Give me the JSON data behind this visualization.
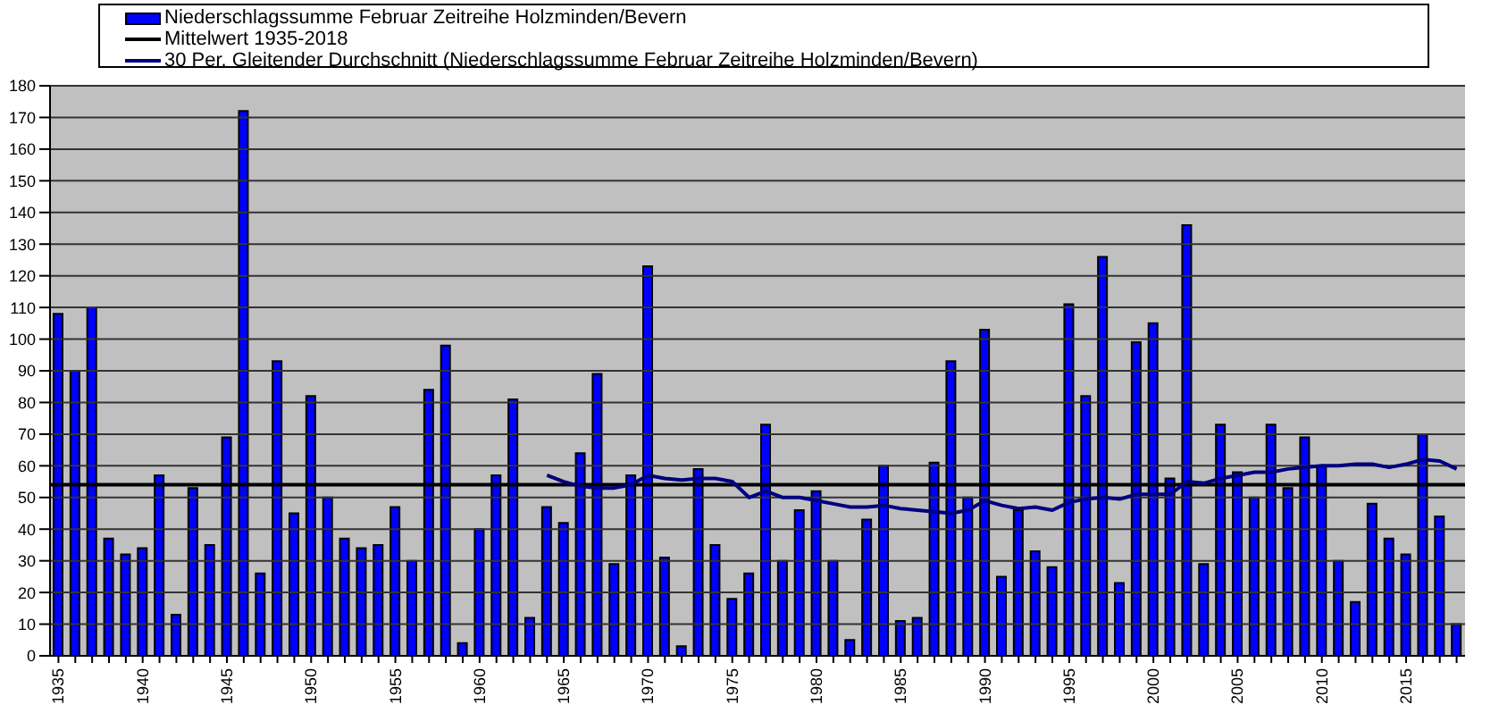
{
  "chart_data": {
    "type": "bar",
    "categories": [
      "1935",
      null,
      null,
      null,
      null,
      "1940",
      null,
      null,
      null,
      null,
      "1945",
      null,
      null,
      null,
      null,
      "1950",
      null,
      null,
      null,
      null,
      "1955",
      null,
      null,
      null,
      null,
      "1960",
      null,
      null,
      null,
      null,
      "1965",
      null,
      null,
      null,
      null,
      "1970",
      null,
      null,
      null,
      null,
      "1975",
      null,
      null,
      null,
      null,
      "1980",
      null,
      null,
      null,
      null,
      "1985",
      null,
      null,
      null,
      null,
      "1990",
      null,
      null,
      null,
      null,
      "1995",
      null,
      null,
      null,
      null,
      "2000",
      null,
      null,
      null,
      null,
      "2005",
      null,
      null,
      null,
      null,
      "2010",
      null,
      null,
      null,
      null,
      "2015",
      null,
      null,
      null
    ],
    "series": [
      {
        "name": "Niederschlagssumme Februar Zeitreihe Holzminden/Bevern",
        "color": "#0000ff",
        "values": [
          108,
          90,
          110,
          37,
          32,
          34,
          57,
          13,
          53,
          35,
          69,
          172,
          26,
          93,
          45,
          82,
          50,
          37,
          34,
          35,
          47,
          30,
          84,
          98,
          4,
          40,
          57,
          81,
          12,
          47,
          42,
          64,
          89,
          29,
          57,
          123,
          31,
          3,
          59,
          35,
          18,
          26,
          73,
          30,
          46,
          52,
          30,
          5,
          43,
          60,
          11,
          12,
          61,
          93,
          50,
          103,
          25,
          46,
          33,
          28,
          111,
          82,
          126,
          23,
          99,
          105,
          56,
          136,
          29,
          73,
          58,
          50,
          73,
          53,
          69,
          60,
          30,
          17,
          48,
          37,
          32,
          70,
          44,
          10
        ]
      },
      {
        "name": "30 Per. Gleitender Durchschnitt (Niederschlagssumme Februar Zeitreihe Holzminden/Bevern)",
        "type": "line",
        "color": "#000080",
        "values": [
          null,
          null,
          null,
          null,
          null,
          null,
          null,
          null,
          null,
          null,
          null,
          null,
          null,
          null,
          null,
          null,
          null,
          null,
          null,
          null,
          null,
          null,
          null,
          null,
          null,
          null,
          null,
          null,
          null,
          57,
          55,
          53.5,
          53,
          53,
          54,
          57,
          56,
          55.5,
          56,
          56,
          55,
          50,
          52,
          50,
          50,
          49,
          48,
          47,
          47,
          47.5,
          46.5,
          46,
          45.5,
          45,
          46,
          49,
          47.5,
          46.5,
          47,
          46,
          48.5,
          49.5,
          50,
          49.5,
          51,
          51,
          51,
          55,
          54.5,
          56,
          57,
          58,
          58,
          59,
          59.5,
          60,
          60,
          60.5,
          60.5,
          59.5,
          60.5,
          62,
          61.5,
          59
        ]
      }
    ],
    "ref_lines": [
      {
        "axis": "y",
        "value": 54,
        "label": "Mittelwert 1935-2018",
        "color": "#000000"
      }
    ],
    "ylim": [
      0,
      180
    ],
    "yticks": [
      0,
      10,
      20,
      30,
      40,
      50,
      60,
      70,
      80,
      90,
      100,
      110,
      120,
      130,
      140,
      150,
      160,
      170,
      180
    ],
    "grid": "y",
    "legend": "top"
  }
}
